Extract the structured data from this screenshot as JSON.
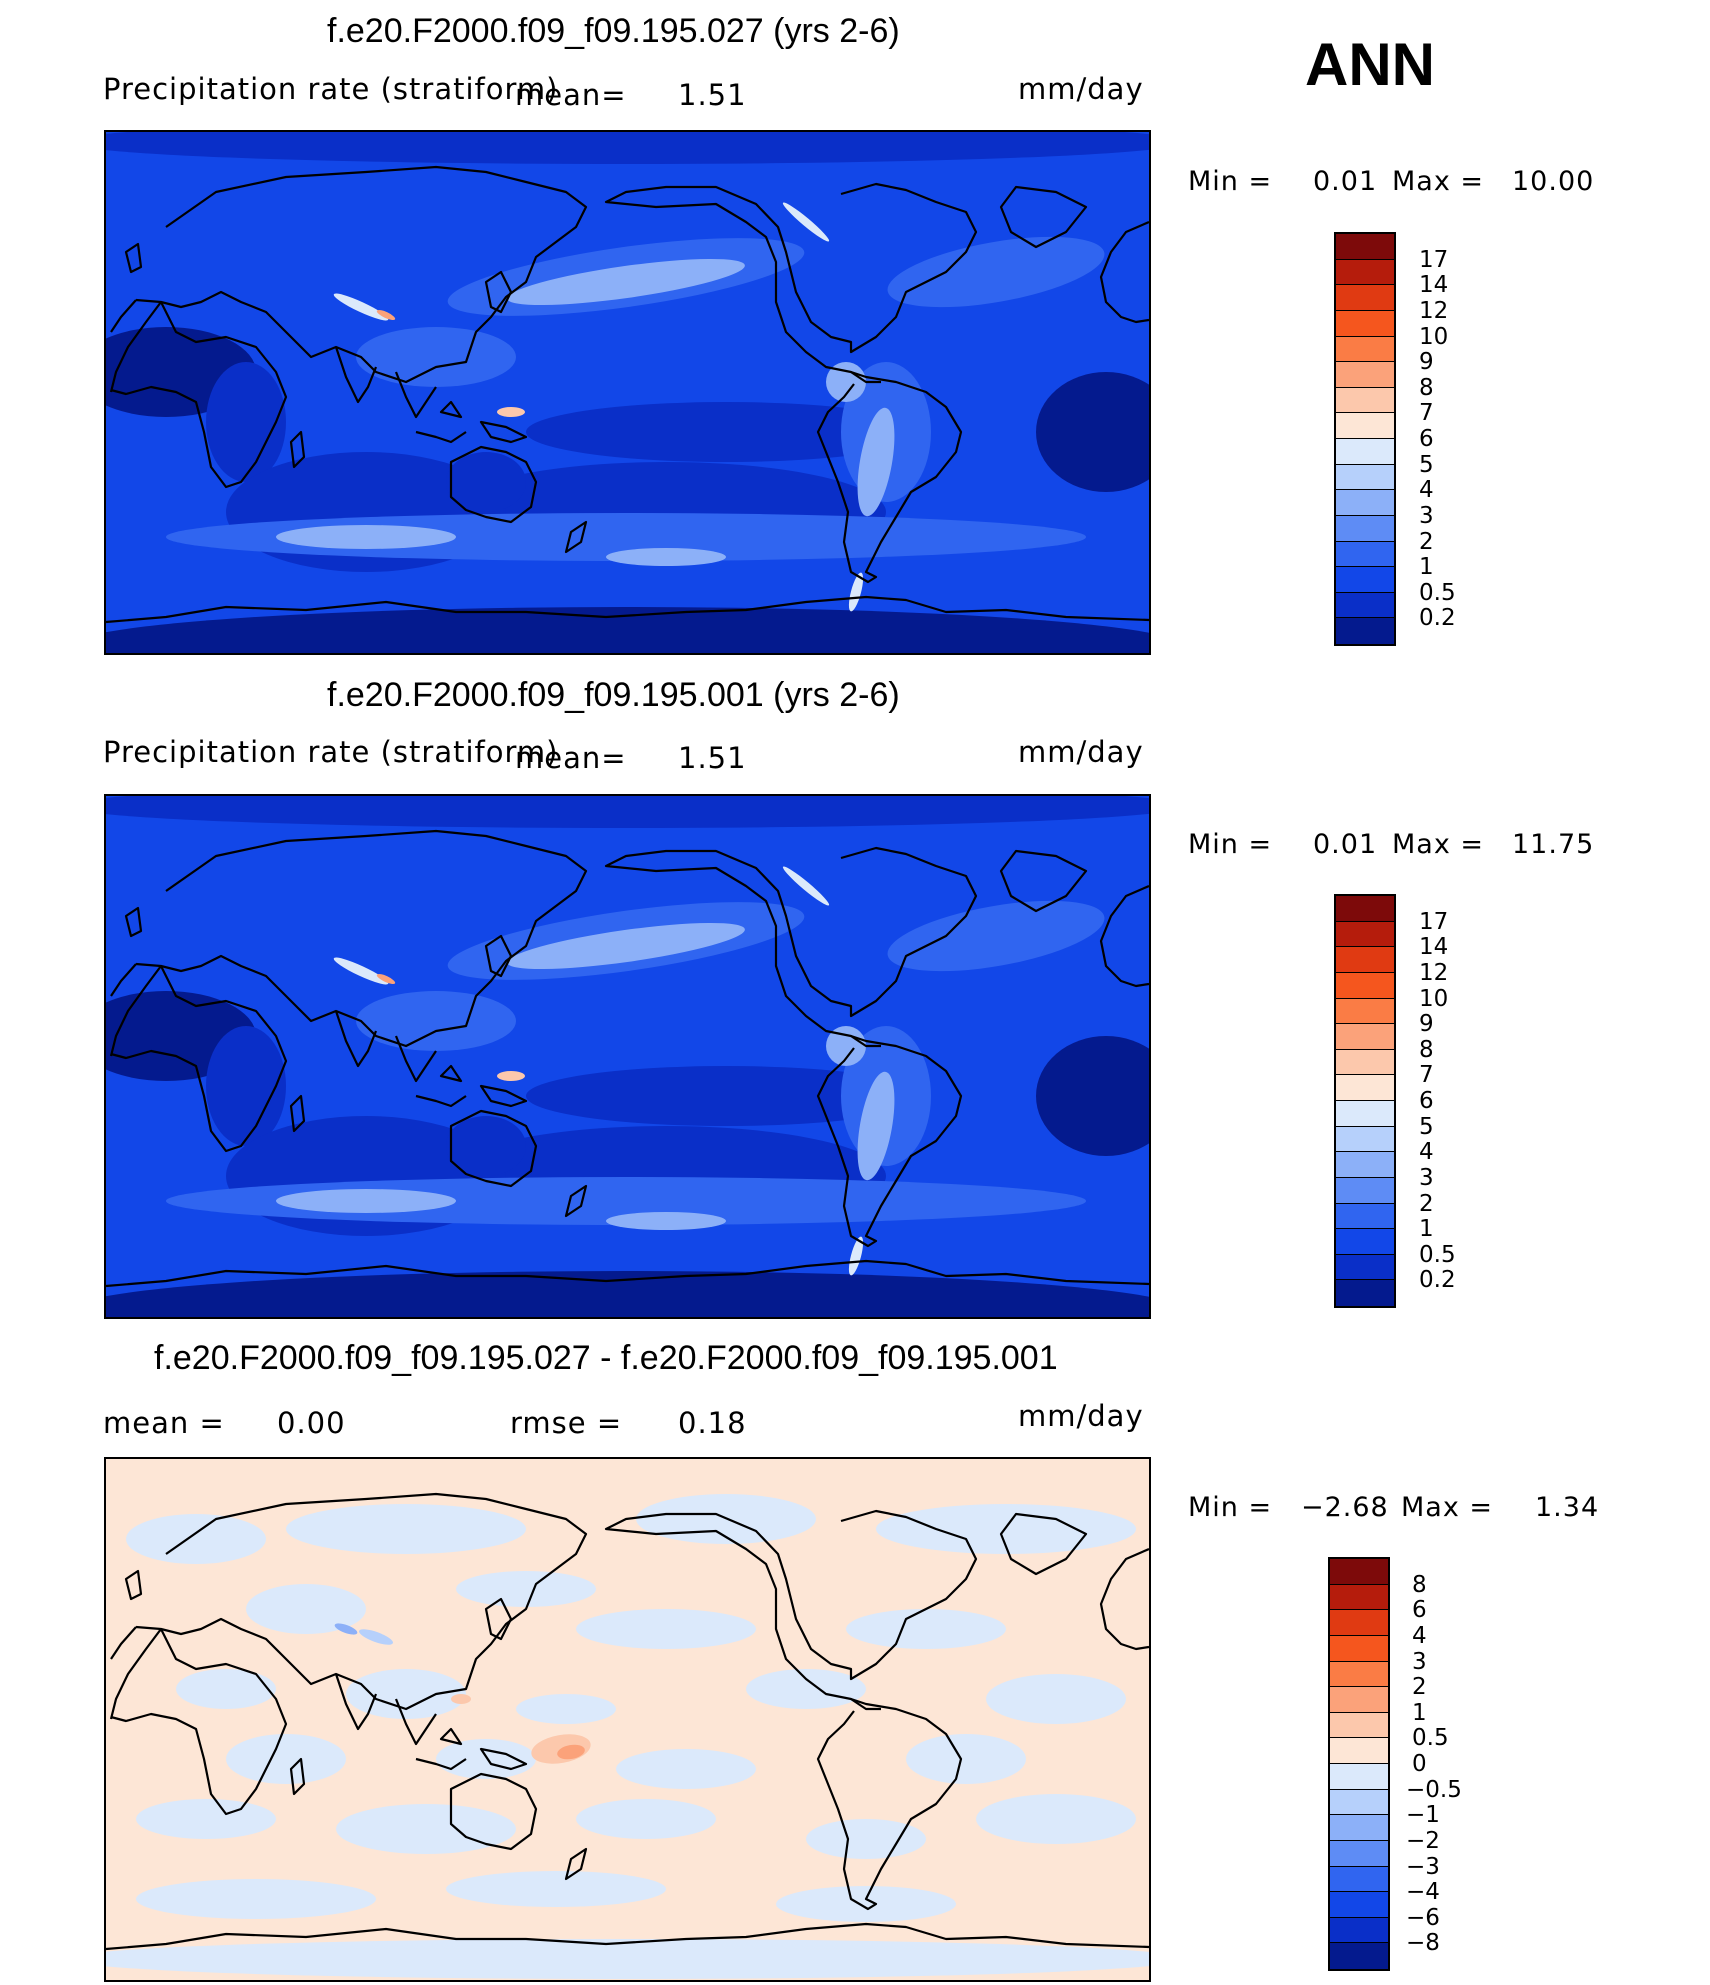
{
  "season": "ANN",
  "units": "mm/day",
  "panels": [
    {
      "title": "f.e20.F2000.f09_f09.195.027 (yrs 2-6)",
      "variable": "Precipitation rate (stratiform)",
      "mean_label": "mean=",
      "mean_value": "1.51",
      "units": "mm/day",
      "min_label": "Min =",
      "min_value": "0.01",
      "max_label": "Max =",
      "max_value": "10.00",
      "colorbar": {
        "labels": [
          "17",
          "14",
          "12",
          "10",
          "9",
          "8",
          "7",
          "6",
          "5",
          "4",
          "3",
          "2",
          "1",
          "0.5",
          "0.2"
        ],
        "colors": [
          "#7d0a0a",
          "#b51c0c",
          "#e03a12",
          "#f5561e",
          "#fa7c45",
          "#fba27a",
          "#fcc8ac",
          "#fde6d6",
          "#dbe9fb",
          "#b6d0fb",
          "#8cb0f8",
          "#5e8cf5",
          "#3065f0",
          "#1247e8",
          "#0a2fc8",
          "#041a8e"
        ]
      }
    },
    {
      "title": "f.e20.F2000.f09_f09.195.001 (yrs 2-6)",
      "variable": "Precipitation rate (stratiform)",
      "mean_label": "mean=",
      "mean_value": "1.51",
      "units": "mm/day",
      "min_label": "Min =",
      "min_value": "0.01",
      "max_label": "Max =",
      "max_value": "11.75",
      "colorbar": {
        "labels": [
          "17",
          "14",
          "12",
          "10",
          "9",
          "8",
          "7",
          "6",
          "5",
          "4",
          "3",
          "2",
          "1",
          "0.5",
          "0.2"
        ],
        "colors": [
          "#7d0a0a",
          "#b51c0c",
          "#e03a12",
          "#f5561e",
          "#fa7c45",
          "#fba27a",
          "#fcc8ac",
          "#fde6d6",
          "#dbe9fb",
          "#b6d0fb",
          "#8cb0f8",
          "#5e8cf5",
          "#3065f0",
          "#1247e8",
          "#0a2fc8",
          "#041a8e"
        ]
      }
    },
    {
      "title": "f.e20.F2000.f09_f09.195.027 - f.e20.F2000.f09_f09.195.001",
      "mean_label": "mean =",
      "mean_value": "0.00",
      "rmse_label": "rmse =",
      "rmse_value": "0.18",
      "units": "mm/day",
      "min_label": "Min =",
      "min_value": "−2.68",
      "max_label": "Max =",
      "max_value": "1.34",
      "colorbar": {
        "labels": [
          "8",
          "6",
          "4",
          "3",
          "2",
          "1",
          "0.5",
          "0",
          "−0.5",
          "−1",
          "−2",
          "−3",
          "−4",
          "−6",
          "−8"
        ],
        "colors": [
          "#7d0a0a",
          "#b51c0c",
          "#e03a12",
          "#f5561e",
          "#fa7c45",
          "#fba27a",
          "#fcc8ac",
          "#fde6d6",
          "#dbe9fb",
          "#b6d0fb",
          "#8cb0f8",
          "#5e8cf5",
          "#3065f0",
          "#1247e8",
          "#0a2fc8",
          "#041a8e"
        ]
      }
    }
  ],
  "palette": {
    "deep": "#041a8e",
    "mid": "#0a2fc8",
    "base": "#1247e8",
    "light": "#3065f0",
    "lighter": "#8cb0f8",
    "pale": "#dbe9fb",
    "diff_pos": "#fde6d6",
    "diff_neg": "#dbe9fb"
  }
}
